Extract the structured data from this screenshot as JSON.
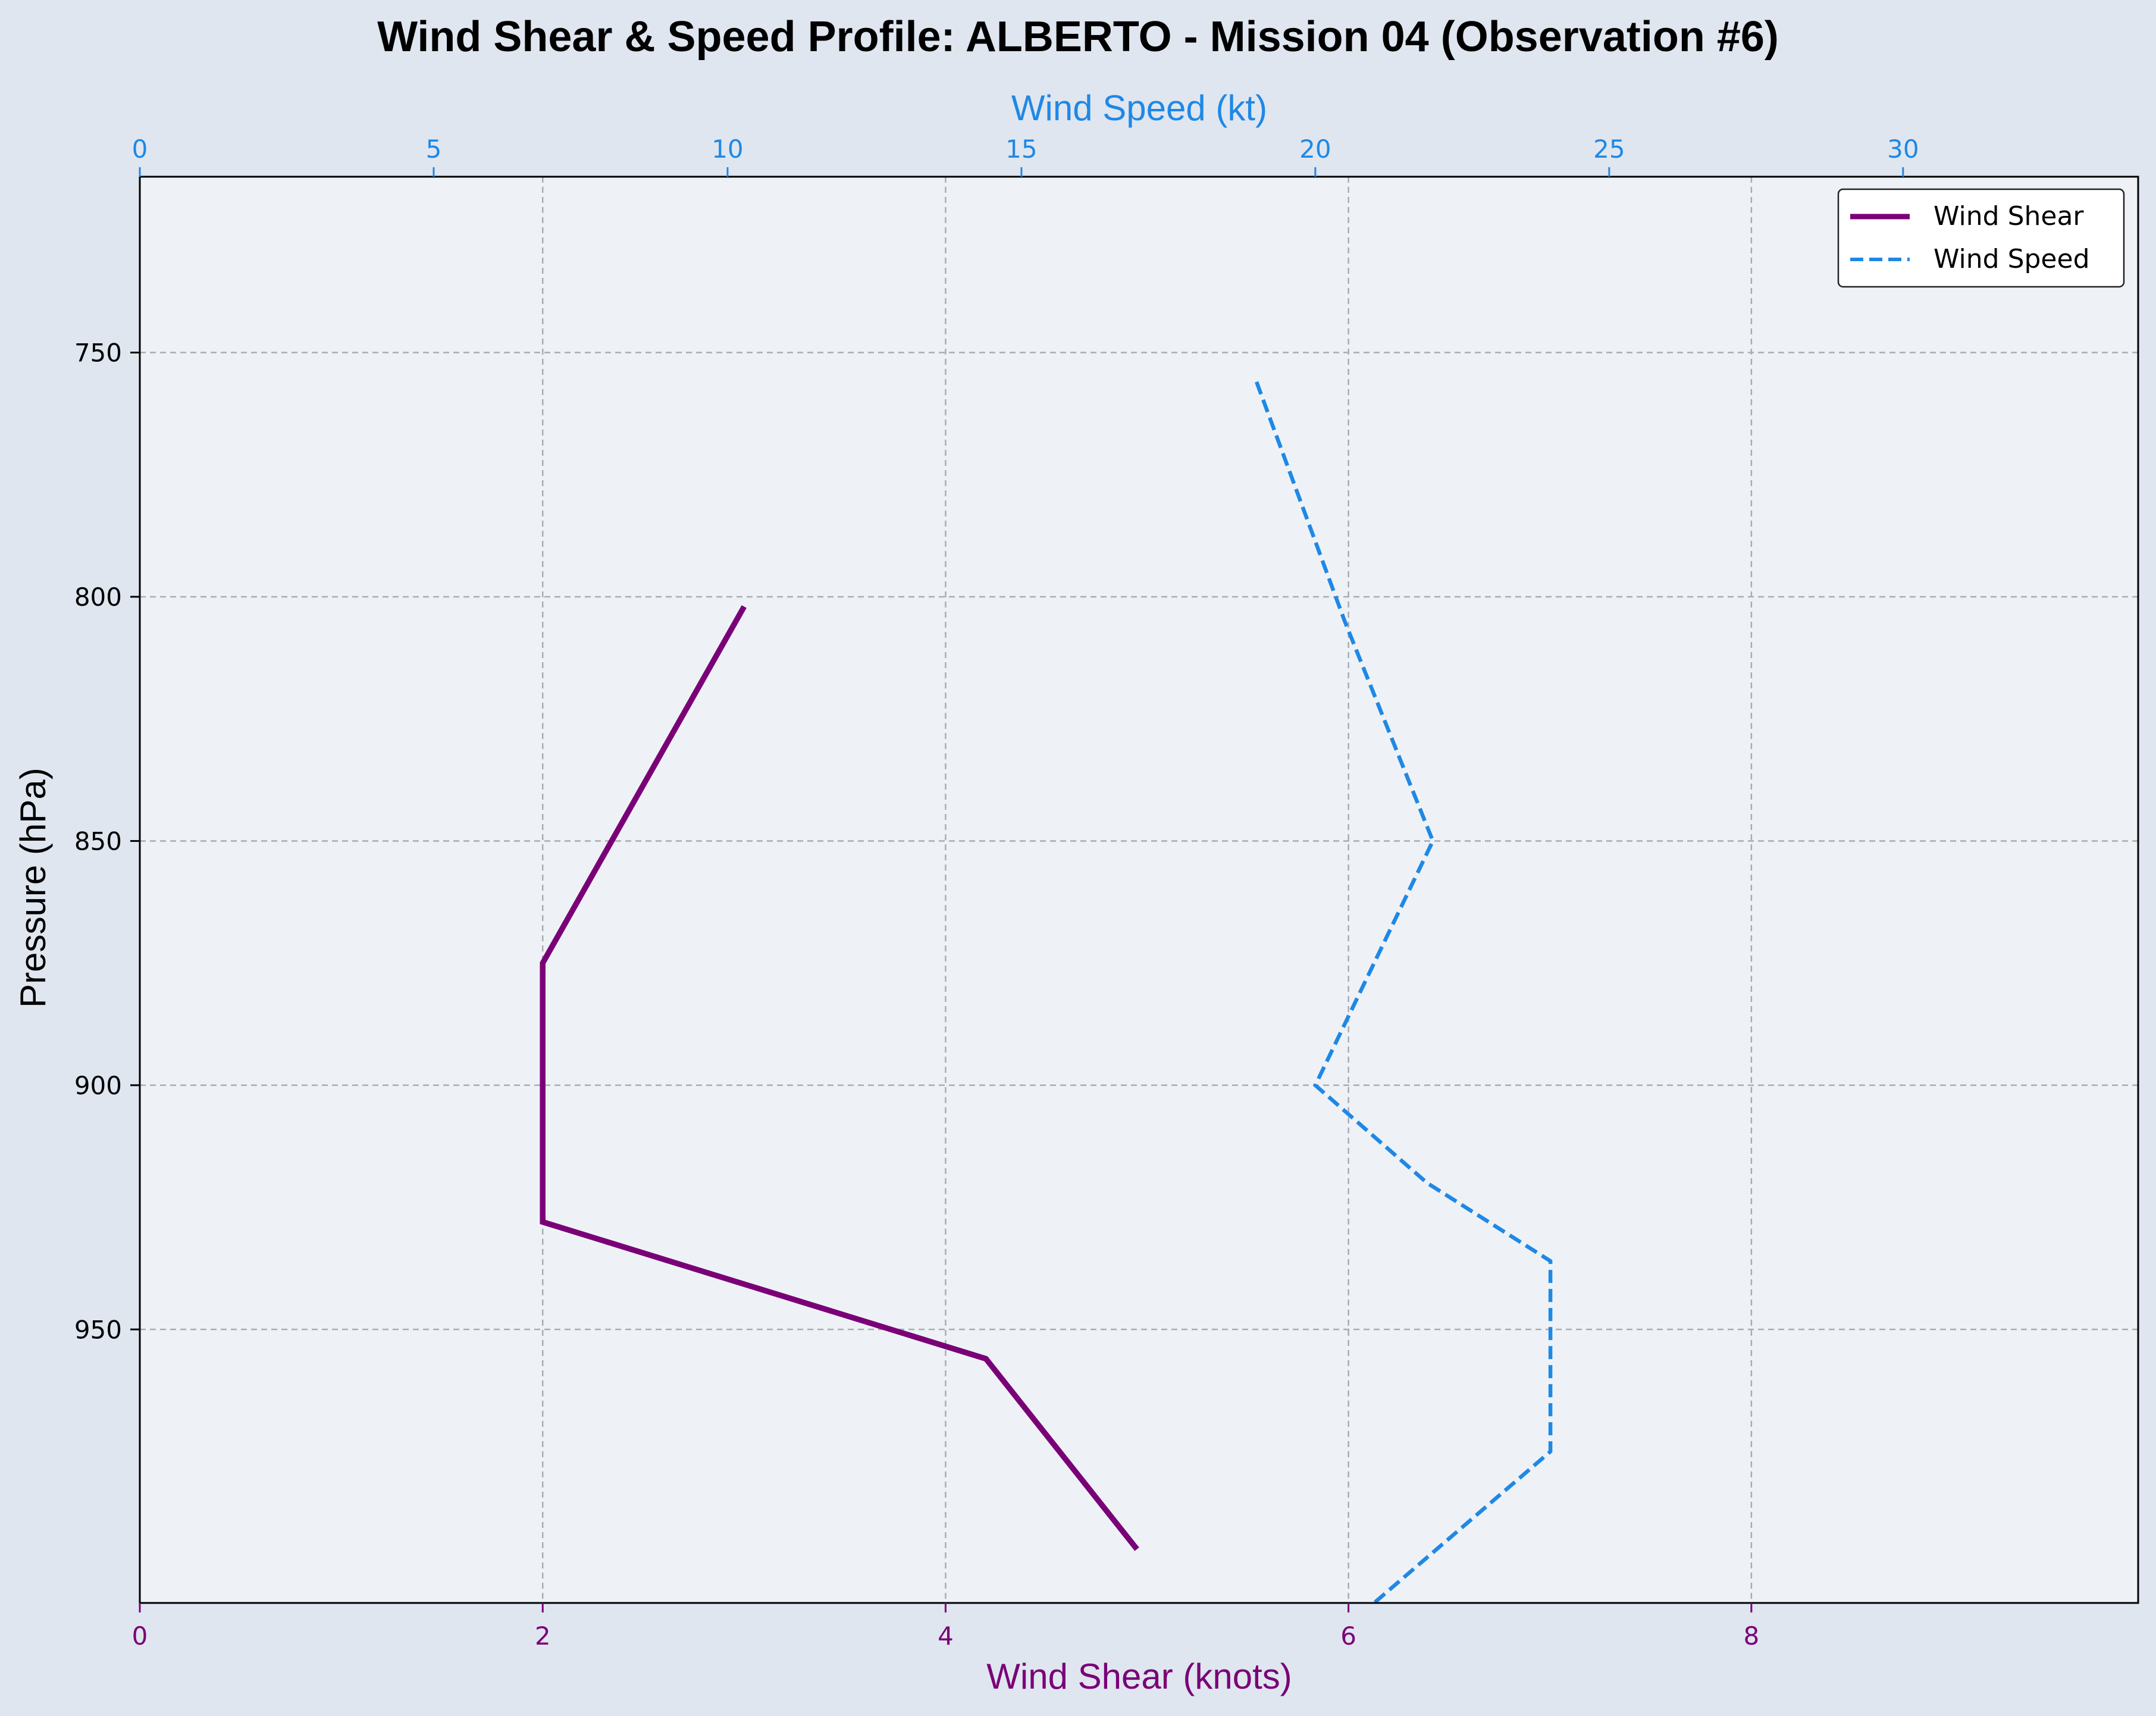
{
  "chart_data": {
    "type": "line",
    "title": "Wind Shear & Speed Profile: ALBERTO - Mission 04 (Observation #6)",
    "ylabel": "Pressure (hPa)",
    "xlabel_bottom": "Wind Shear (knots)",
    "xlabel_top": "Wind Speed (kt)",
    "y_axis": {
      "ticks": [
        750,
        800,
        850,
        900,
        950
      ],
      "lim": [
        714,
        1006
      ],
      "inverted": true
    },
    "x_bottom": {
      "ticks": [
        0,
        2,
        4,
        6,
        8
      ],
      "lim": [
        0,
        9.92
      ],
      "color": "#7a0077"
    },
    "x_top": {
      "ticks": [
        0,
        5,
        10,
        15,
        20,
        25,
        30
      ],
      "lim": [
        0,
        34.0
      ],
      "color": "#1f88e5"
    },
    "grid": true,
    "legend_placement": "top-right",
    "series": [
      {
        "name": "Wind Shear",
        "axis": "bottom",
        "color": "#7a0077",
        "style": "solid",
        "x": [
          3.0,
          2.0,
          2.0,
          4.2,
          4.95
        ],
        "y": [
          802,
          875,
          928,
          956,
          995
        ]
      },
      {
        "name": "Wind Speed",
        "axis": "top",
        "color": "#1f88e5",
        "style": "dashed",
        "x": [
          19.0,
          20.5,
          22.0,
          20.0,
          21.9,
          24.0,
          24.0,
          21.0
        ],
        "y": [
          756,
          805,
          850,
          900,
          920,
          936,
          975,
          1006
        ]
      }
    ]
  }
}
